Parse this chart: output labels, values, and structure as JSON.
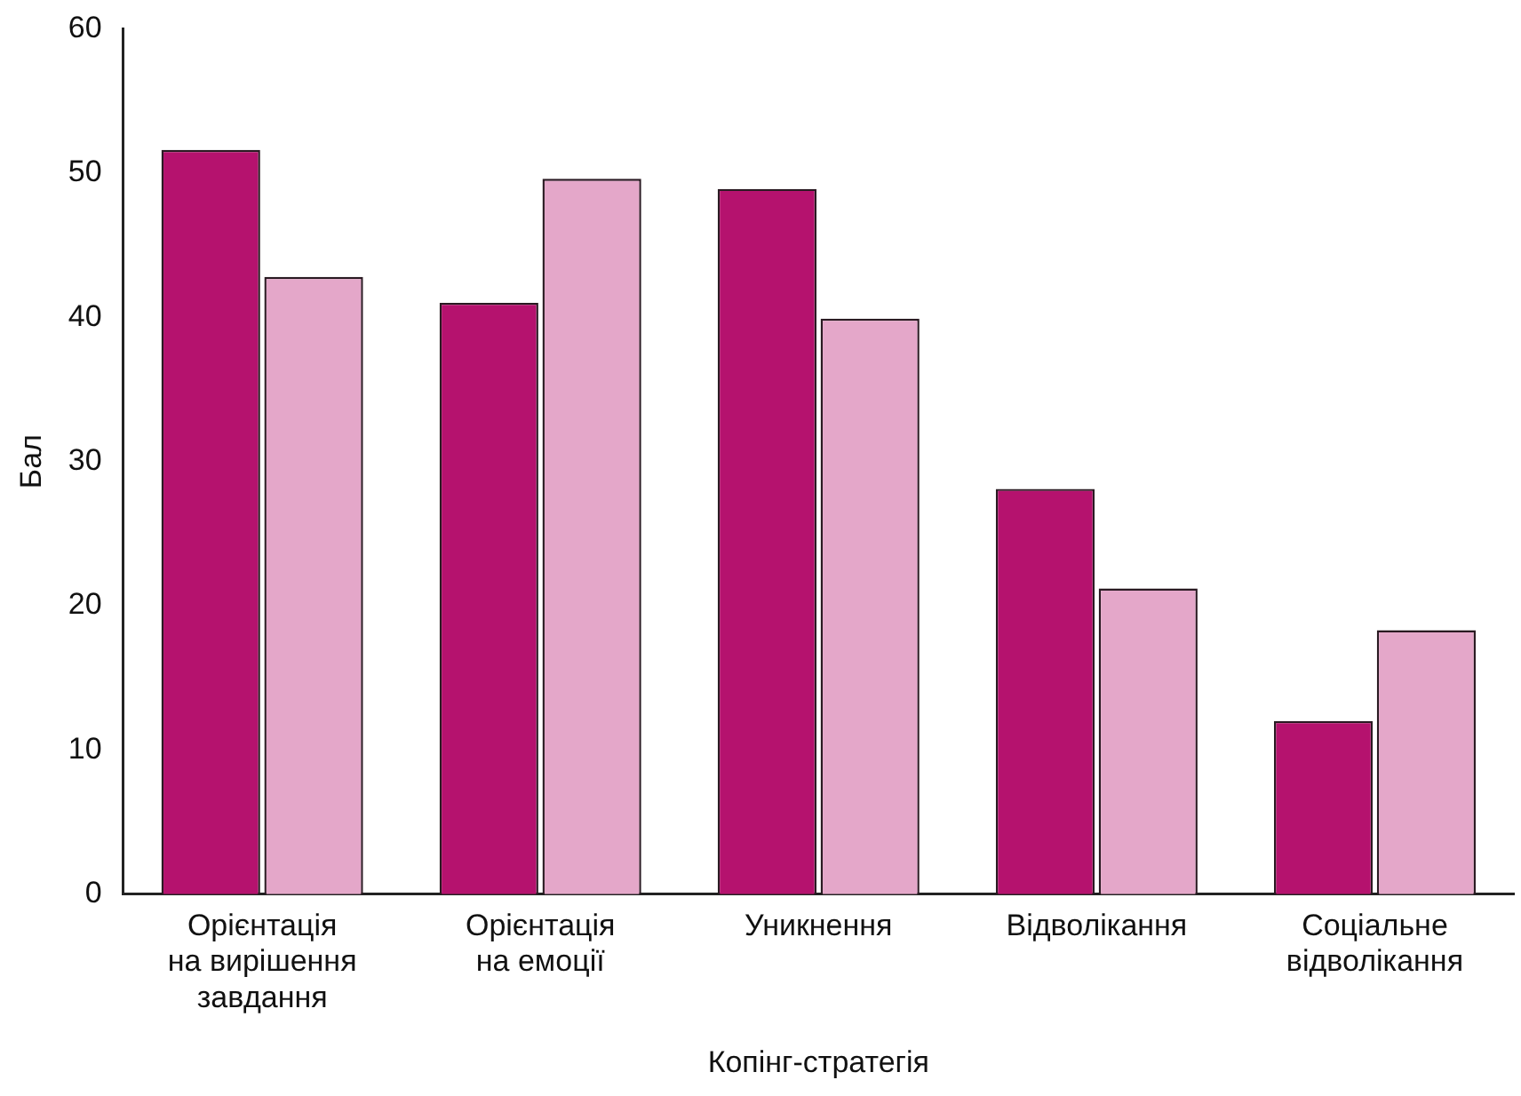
{
  "chart_data": {
    "type": "bar",
    "xlabel": "Копінг-стратегія",
    "ylabel": "Бал",
    "categories": [
      "Орієнтація на вирішення завдання",
      "Орієнтація на емоції",
      "Уникнення",
      "Відволікання",
      "Соціальне відволікання"
    ],
    "series": [
      {
        "color": "#b5126e",
        "values": [
          51.6,
          41.0,
          48.9,
          28.1,
          12.0
        ]
      },
      {
        "color": "#e4a7c9",
        "values": [
          42.8,
          49.6,
          39.9,
          21.2,
          18.3
        ]
      }
    ],
    "ylim": [
      0,
      60
    ],
    "yticks": [
      0,
      10,
      20,
      30,
      40,
      50,
      60
    ],
    "grid": false,
    "legend": false
  }
}
